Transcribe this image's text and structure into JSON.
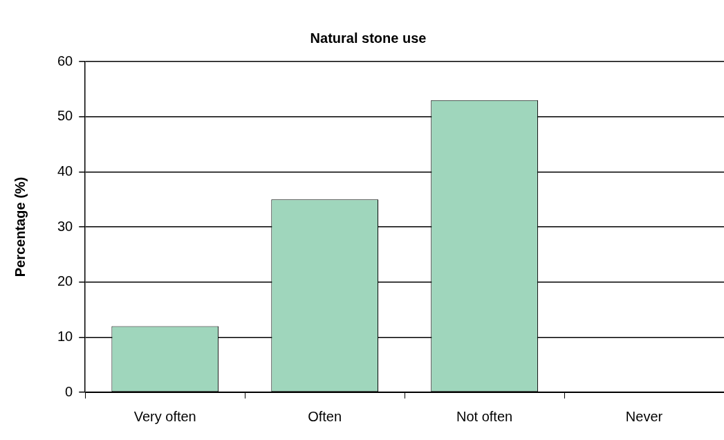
{
  "chart_data": {
    "type": "bar",
    "title": "Natural stone use",
    "ylabel": "Percentage (%)",
    "categories": [
      "Very often",
      "Often",
      "Not often",
      "Never"
    ],
    "values": [
      12,
      35,
      53,
      0
    ],
    "color": "#9fd6bc",
    "ylim": [
      0,
      60
    ],
    "yticks": [
      0,
      10,
      20,
      30,
      40,
      50,
      60
    ],
    "grid": "y"
  }
}
